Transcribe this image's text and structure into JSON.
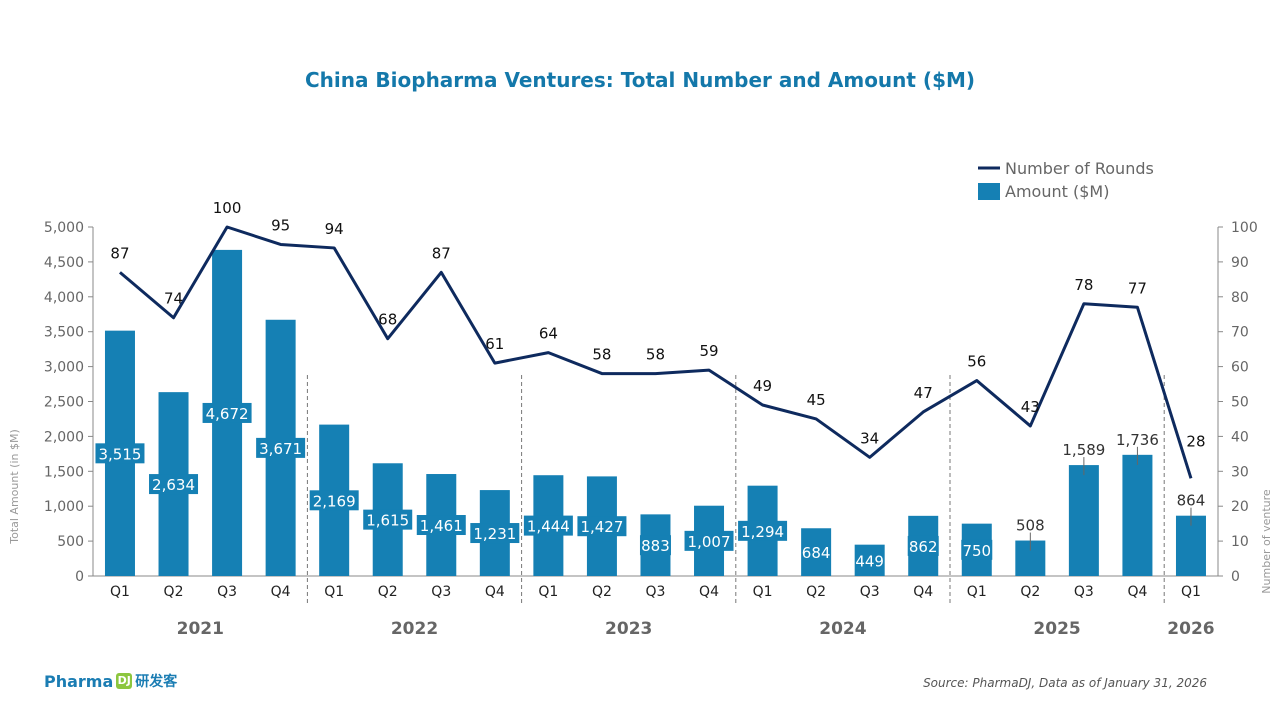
{
  "chart_data": {
    "type": "bar+line",
    "title": "China Biopharma Ventures: Total Number and Amount ($M)",
    "ylabel_left": "Total Amount (in $M)",
    "ylabel_right": "Number of venture",
    "ylim_left": [
      0,
      5000
    ],
    "yticks_left": [
      0,
      500,
      1000,
      1500,
      2000,
      2500,
      3000,
      3500,
      4000,
      4500,
      5000
    ],
    "ylim_right": [
      0,
      100
    ],
    "yticks_right": [
      0,
      10,
      20,
      30,
      40,
      50,
      60,
      70,
      80,
      90,
      100
    ],
    "legend_placement": "top-right",
    "categories": [
      "Q1",
      "Q2",
      "Q3",
      "Q4",
      "Q1",
      "Q2",
      "Q3",
      "Q4",
      "Q1",
      "Q2",
      "Q3",
      "Q4",
      "Q1",
      "Q2",
      "Q3",
      "Q4",
      "Q1",
      "Q2",
      "Q3",
      "Q4",
      "Q1"
    ],
    "years": [
      {
        "label": "2021",
        "quarters": 4
      },
      {
        "label": "2022",
        "quarters": 4
      },
      {
        "label": "2023",
        "quarters": 4
      },
      {
        "label": "2024",
        "quarters": 4
      },
      {
        "label": "2025",
        "quarters": 4
      },
      {
        "label": "2026",
        "quarters": 1
      }
    ],
    "series": [
      {
        "name": "Amount ($M)",
        "type": "bar",
        "axis": "left",
        "color": "#1580b4",
        "values": [
          3515,
          2634,
          4672,
          3671,
          2169,
          1615,
          1461,
          1231,
          1444,
          1427,
          883,
          1007,
          1294,
          684,
          449,
          862,
          750,
          508,
          1589,
          1736,
          864
        ],
        "labels": [
          "3,515",
          "2,634",
          "4,672",
          "3,671",
          "2,169",
          "1,615",
          "1,461",
          "1,231",
          "1,444",
          "1,427",
          "883",
          "1,007",
          "1,294",
          "684",
          "449",
          "862",
          "750",
          "508",
          "1,589",
          "1,736",
          "864"
        ]
      },
      {
        "name": "Number of Rounds",
        "type": "line",
        "axis": "right",
        "color": "#0e2a5e",
        "values": [
          87,
          74,
          100,
          95,
          94,
          68,
          87,
          61,
          64,
          58,
          58,
          59,
          49,
          45,
          34,
          47,
          56,
          43,
          78,
          77,
          28
        ]
      }
    ]
  },
  "source": "Source: PharmaDJ, Data as of January 31, 2026",
  "logo": {
    "text": "Pharma",
    "mark": "DJ",
    "cn": "研发客"
  }
}
